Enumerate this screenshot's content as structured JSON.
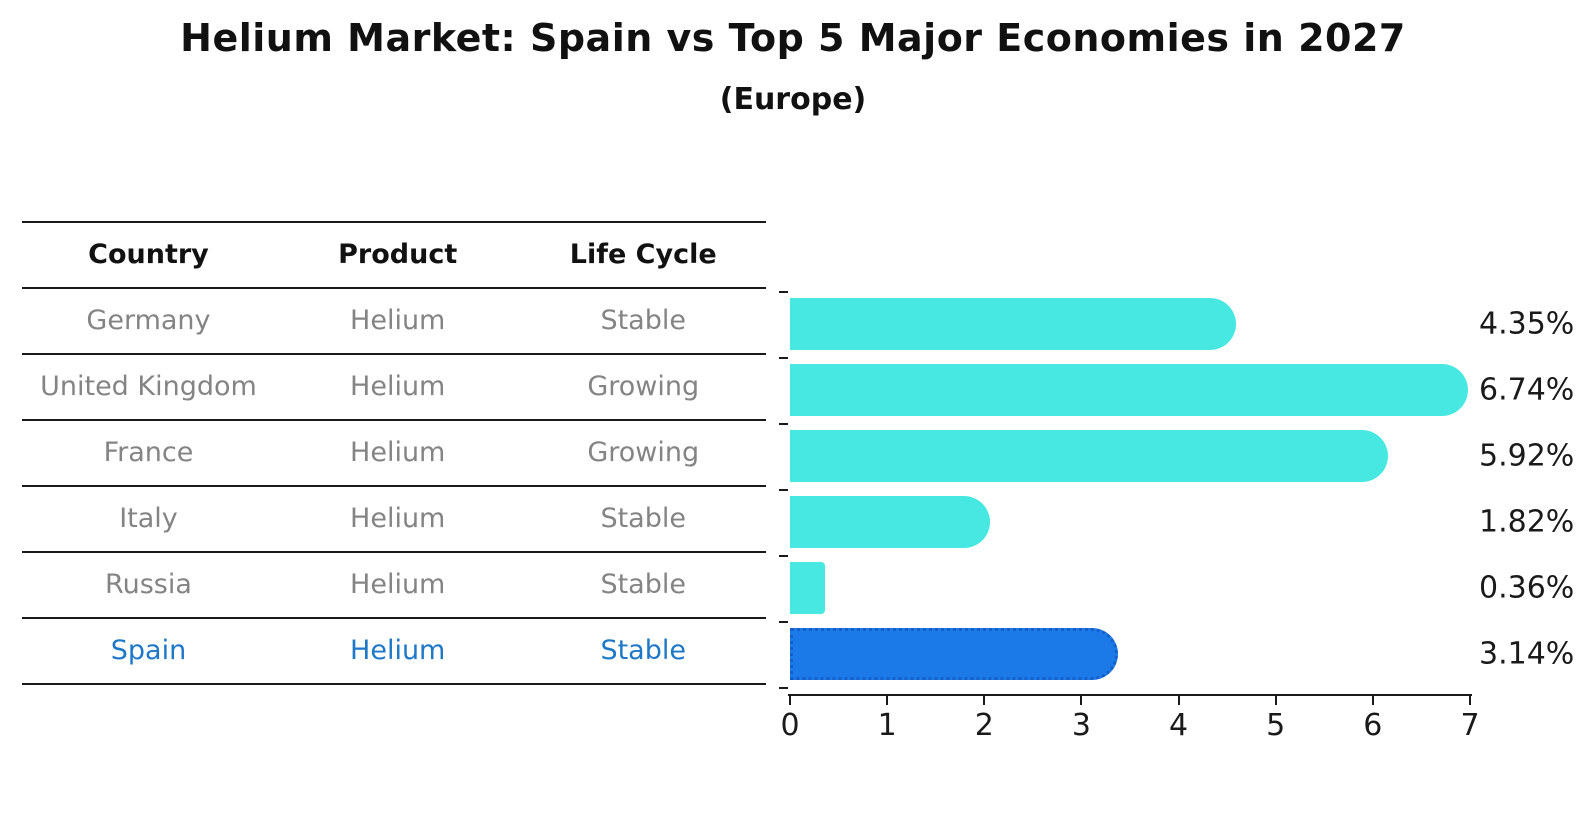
{
  "title": "Helium Market: Spain vs Top 5 Major Economies in 2027",
  "subtitle": "(Europe)",
  "table": {
    "headers": [
      "Country",
      "Product",
      "Life Cycle"
    ],
    "rows": [
      {
        "country": "Germany",
        "product": "Helium",
        "life_cycle": "Stable",
        "highlighted": false
      },
      {
        "country": "United Kingdom",
        "product": "Helium",
        "life_cycle": "Growing",
        "highlighted": false
      },
      {
        "country": "France",
        "product": "Helium",
        "life_cycle": "Growing",
        "highlighted": false
      },
      {
        "country": "Italy",
        "product": "Helium",
        "life_cycle": "Stable",
        "highlighted": false
      },
      {
        "country": "Russia",
        "product": "Helium",
        "life_cycle": "Stable",
        "highlighted": false
      },
      {
        "country": "Spain",
        "product": "Helium",
        "life_cycle": "Stable",
        "highlighted": true
      }
    ]
  },
  "chart_data": {
    "type": "bar",
    "orientation": "horizontal",
    "title": "Helium Market: Spain vs Top 5 Major Economies in 2027",
    "subtitle": "(Europe)",
    "categories": [
      "Germany",
      "United Kingdom",
      "France",
      "Italy",
      "Russia",
      "Spain"
    ],
    "values": [
      4.35,
      6.74,
      5.92,
      1.82,
      0.36,
      3.14
    ],
    "value_labels": [
      "4.35%",
      "6.74%",
      "5.92%",
      "1.82%",
      "0.36%",
      "3.14%"
    ],
    "highlight_category": "Spain",
    "xlim": [
      0,
      7
    ],
    "x_ticks": [
      "0",
      "1",
      "2",
      "3",
      "4",
      "5",
      "6",
      "7"
    ],
    "grid": false,
    "legend": false,
    "colors": {
      "bar": "#48E8E2",
      "highlight_bar": "#1C79E8",
      "highlight_border": "#155FC8",
      "highlight_text": "#1E78C8",
      "row_text": "#848484",
      "axis_text": "#1a1a1a"
    }
  }
}
